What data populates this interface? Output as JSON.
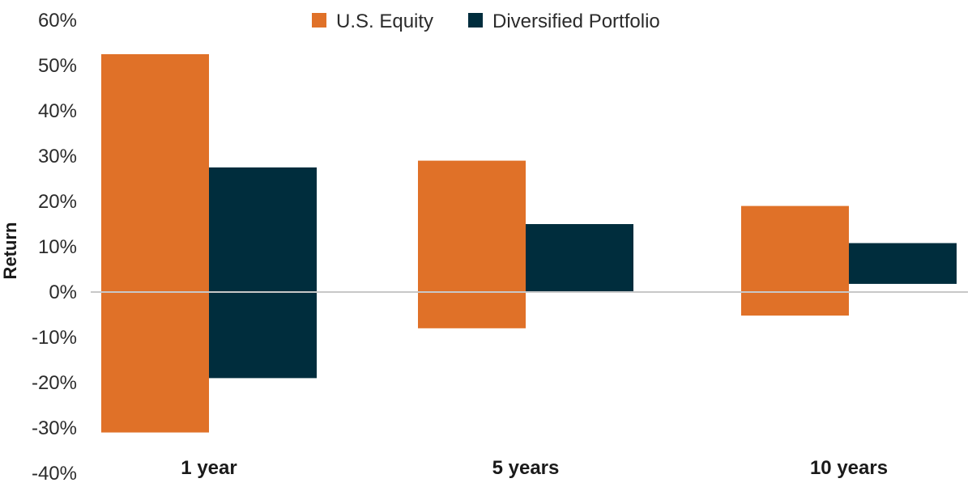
{
  "chart_data": {
    "type": "bar",
    "subtype": "floating-range",
    "title": "",
    "xlabel": "",
    "ylabel": "Return",
    "ylim": [
      -40,
      60
    ],
    "yticks": [
      60,
      50,
      40,
      30,
      20,
      10,
      0,
      -10,
      -20,
      -30,
      -40
    ],
    "tick_suffix": "%",
    "categories": [
      "1 year",
      "5 years",
      "10 years"
    ],
    "series": [
      {
        "name": "U.S. Equity",
        "color": "#E07128",
        "ranges": [
          [
            -31,
            52.5
          ],
          [
            -8,
            29
          ],
          [
            -5.2,
            19
          ]
        ]
      },
      {
        "name": "Diversified Portfolio",
        "color": "#002D3D",
        "ranges": [
          [
            -19,
            27.5
          ],
          [
            0,
            15
          ],
          [
            1.8,
            10.8
          ]
        ]
      }
    ],
    "zero_line_color": "#C8C8C8",
    "grid": false,
    "legend_position": "top-center"
  }
}
